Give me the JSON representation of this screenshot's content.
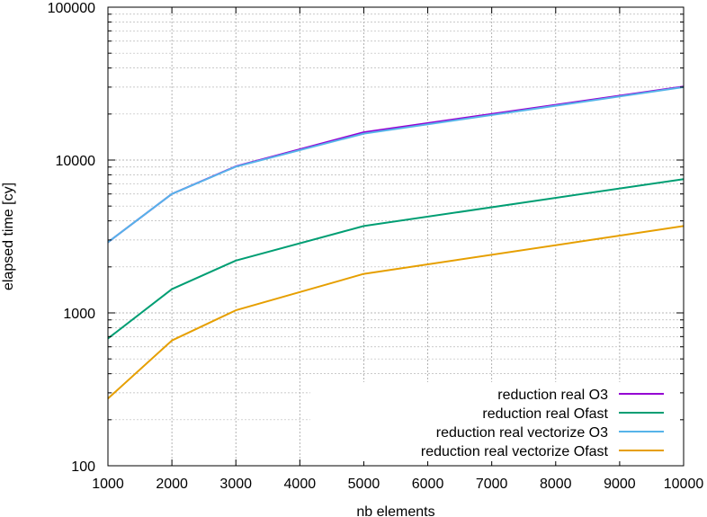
{
  "chart_data": {
    "type": "line",
    "title": "",
    "xlabel": "nb elements",
    "ylabel": "elapsed time [cy]",
    "xlim": [
      1000,
      10000
    ],
    "ylim": [
      100,
      100000
    ],
    "yscale": "log",
    "grid": true,
    "legend_position": "bottom-right",
    "x_ticks": [
      1000,
      2000,
      3000,
      4000,
      5000,
      6000,
      7000,
      8000,
      9000,
      10000
    ],
    "x_tick_labels": [
      "1000",
      "2000",
      "3000",
      "4000",
      "5000",
      "6000",
      "7000",
      "8000",
      "9000",
      "10000"
    ],
    "y_ticks": [
      100,
      1000,
      10000,
      100000
    ],
    "y_tick_labels": [
      "100",
      "1000",
      "10000",
      "100000"
    ],
    "x": [
      1000,
      2000,
      3000,
      5000,
      10000
    ],
    "series": [
      {
        "name": "reduction real O3",
        "color": "#9400d3",
        "values": [
          2900,
          6000,
          9100,
          15200,
          30300
        ]
      },
      {
        "name": "reduction real Ofast",
        "color": "#009e73",
        "values": [
          680,
          1430,
          2200,
          3700,
          7500
        ]
      },
      {
        "name": "reduction real vectorize O3",
        "color": "#56b4e9",
        "values": [
          2900,
          6000,
          9050,
          14900,
          30000
        ]
      },
      {
        "name": "reduction real vectorize Ofast",
        "color": "#e69f00",
        "values": [
          275,
          660,
          1040,
          1800,
          3700
        ]
      }
    ]
  }
}
